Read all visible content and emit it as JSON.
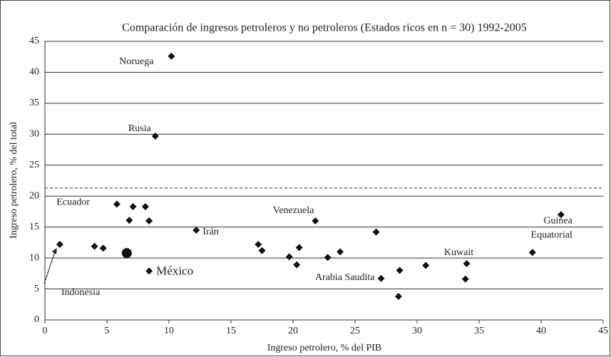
{
  "chart_data": {
    "type": "scatter",
    "title": "Comparación de ingresos petroleros y no petroleros (Estados ricos en n = 30) 1992-2005",
    "xlabel": "Ingreso petrolero, % del PIB",
    "ylabel": "Ingreso petrolero, % del total",
    "xlim": [
      0,
      45
    ],
    "ylim": [
      0,
      45
    ],
    "xticks": [
      0,
      5,
      10,
      15,
      20,
      25,
      30,
      35,
      40,
      45
    ],
    "yticks": [
      0,
      5,
      10,
      15,
      20,
      25,
      30,
      35,
      40,
      45
    ],
    "grid": true,
    "reference_line": 21.3,
    "series": [
      {
        "color": "#111111",
        "marker": "diamond",
        "x": [
          10.2,
          8.9,
          5.8,
          12.2,
          21.8,
          27.1,
          34.0,
          41.6,
          8.4,
          1.2,
          7.1,
          8.1,
          6.8,
          8.4,
          4.0,
          4.7,
          17.2,
          17.5,
          19.7,
          20.5,
          20.3,
          22.8,
          23.8,
          26.7,
          28.6,
          28.5,
          30.7,
          33.9,
          39.3
        ],
        "values": [
          42.6,
          29.7,
          18.7,
          14.5,
          16.0,
          6.7,
          9.1,
          17.0,
          7.9,
          12.2,
          18.3,
          18.3,
          16.1,
          16.0,
          11.9,
          11.6,
          12.2,
          11.2,
          10.2,
          11.7,
          8.9,
          10.1,
          11.0,
          14.2,
          8.0,
          3.8,
          8.8,
          6.6,
          10.9
        ],
        "point_labels": [
          "Noruega",
          "Rusia",
          "Ecuador",
          "Irán",
          "Venezuela",
          "Arabia Saudita",
          "Kuwait",
          "Guinea Equatorial",
          "México",
          "Indonesia",
          null,
          null,
          null,
          null,
          null,
          null,
          null,
          null,
          null,
          null,
          null,
          null,
          null,
          null,
          null,
          null,
          null,
          null,
          null
        ]
      },
      {
        "color": "#111111",
        "marker": "circle",
        "x": [
          6.6
        ],
        "values": [
          10.8
        ]
      }
    ]
  }
}
